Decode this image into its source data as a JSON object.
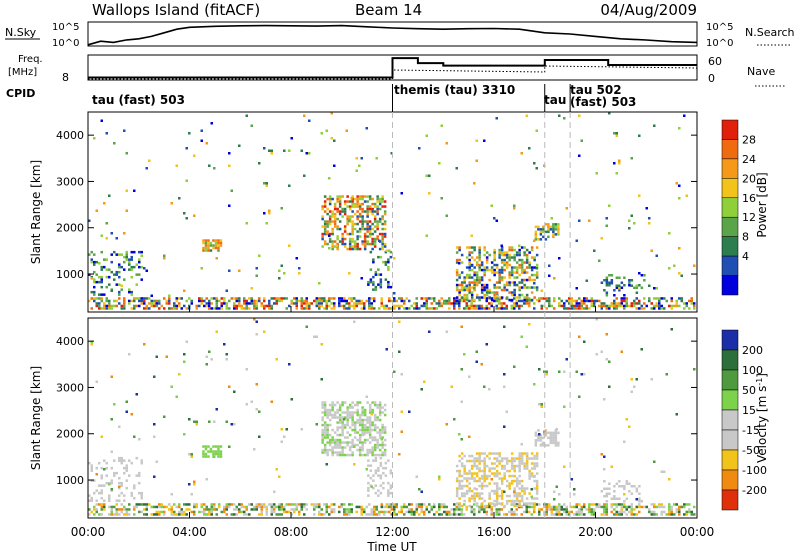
{
  "header": {
    "title_left": "Wallops Island (fitACF)",
    "title_center": "Beam 14",
    "title_right": "04/Aug/2009"
  },
  "noise_panel": {
    "left_label": "N.Sky",
    "right_label": "N.Search",
    "left_ticks": [
      "10^5",
      "10^0"
    ],
    "right_ticks": [
      "10^5",
      "10^0"
    ]
  },
  "freq_panel": {
    "left_label_top": "Freq.",
    "left_label_unit": "[MHz]",
    "left_tick": "8",
    "right_label": "Nave",
    "right_ticks": [
      "60",
      "0"
    ],
    "cpid_label": "CPID"
  },
  "cpid_modes": [
    {
      "label": "tau (fast) 503",
      "start_hour": 0
    },
    {
      "label": "themis (tau) 3310",
      "start_hour": 12.0
    },
    {
      "label": "tau",
      "start_hour": 18.0
    },
    {
      "label": "tau 502",
      "start_hour": 19.0
    },
    {
      "label": "(fast) 503",
      "start_hour": 19.0
    }
  ],
  "x_axis": {
    "label": "Time UT",
    "ticks": [
      "00:00",
      "04:00",
      "08:00",
      "12:00",
      "16:00",
      "20:00",
      "00:00"
    ],
    "tick_hours": [
      0,
      4,
      8,
      12,
      16,
      20,
      24
    ],
    "range_hours": [
      0,
      24
    ]
  },
  "colors": {
    "power": [
      "#0000dd",
      "#1f4fb3",
      "#2e7d4f",
      "#5aa54a",
      "#8fcf3a",
      "#f2c31b",
      "#f59a18",
      "#f06a10",
      "#e0200b"
    ],
    "velocity": [
      "#1a2ea8",
      "#2d6f3a",
      "#4f9a3f",
      "#7cd24a",
      "#c8c8c8",
      "#c8c8c8",
      "#f2c31b",
      "#f08a10",
      "#e0300b"
    ]
  },
  "chart_data": [
    {
      "type": "line",
      "name": "noise",
      "ylabel_left": "N.Sky",
      "ylabel_right": "N.Search",
      "x": [
        0,
        0.5,
        1.0,
        1.5,
        2.0,
        2.5,
        3.0,
        3.5,
        4.0,
        5,
        6,
        7,
        8,
        9,
        10,
        11,
        12,
        13,
        14,
        15,
        16,
        17,
        18,
        19,
        20,
        21,
        22,
        23,
        24
      ],
      "y_fraction": [
        0.05,
        0.2,
        0.15,
        0.25,
        0.3,
        0.4,
        0.55,
        0.7,
        0.78,
        0.82,
        0.84,
        0.85,
        0.84,
        0.83,
        0.85,
        0.8,
        0.75,
        0.72,
        0.7,
        0.72,
        0.73,
        0.7,
        0.55,
        0.5,
        0.4,
        0.3,
        0.25,
        0.18,
        0.15
      ]
    },
    {
      "type": "line",
      "name": "frequency",
      "ylabel": "Freq. [MHz]",
      "segments_hours": [
        [
          0,
          12.0,
          8.4
        ],
        [
          12.0,
          13.0,
          11.5
        ],
        [
          13.0,
          14.0,
          10.7
        ],
        [
          14.0,
          18.0,
          10.3
        ],
        [
          18.0,
          20.5,
          11.2
        ],
        [
          20.5,
          24,
          10.4
        ]
      ]
    },
    {
      "type": "heatmap",
      "name": "power",
      "ylabel": "Slant Range [km]",
      "xlabel": "",
      "colorbar_label": "Power [dB]",
      "colorbar_ticks": [
        "28",
        "24",
        "20",
        "16",
        "12",
        "8",
        "4"
      ],
      "y_ticks": [
        "4000",
        "3000",
        "2000",
        "1000"
      ],
      "y_tick_values": [
        4000,
        3000,
        2000,
        1000
      ],
      "ylim": [
        180,
        4500
      ],
      "xlim": [
        0,
        24
      ],
      "patches": [
        {
          "t0": 0.0,
          "t1": 24.0,
          "r0": 180,
          "r1": 500,
          "density": 0.55,
          "lvl": [
            0,
            8
          ]
        },
        {
          "t0": 0.0,
          "t1": 2.2,
          "r0": 500,
          "r1": 1500,
          "density": 0.22,
          "lvl": [
            0,
            4
          ]
        },
        {
          "t0": 4.5,
          "t1": 5.3,
          "r0": 1450,
          "r1": 1750,
          "density": 0.8,
          "lvl": [
            2,
            7
          ]
        },
        {
          "t0": 9.2,
          "t1": 11.8,
          "r0": 1500,
          "r1": 2700,
          "density": 0.55,
          "lvl": [
            1,
            8
          ]
        },
        {
          "t0": 11.0,
          "t1": 12.0,
          "r0": 600,
          "r1": 1500,
          "density": 0.25,
          "lvl": [
            0,
            4
          ]
        },
        {
          "t0": 14.5,
          "t1": 17.8,
          "r0": 400,
          "r1": 1600,
          "density": 0.45,
          "lvl": [
            0,
            7
          ]
        },
        {
          "t0": 17.6,
          "t1": 18.6,
          "r0": 1700,
          "r1": 2100,
          "density": 0.6,
          "lvl": [
            1,
            6
          ]
        },
        {
          "t0": 20.2,
          "t1": 22.0,
          "r0": 500,
          "r1": 1000,
          "density": 0.25,
          "lvl": [
            0,
            3
          ]
        },
        {
          "t0": 0.0,
          "t1": 24.0,
          "r0": 500,
          "r1": 4500,
          "density": 0.012,
          "lvl": [
            0,
            6
          ]
        }
      ]
    },
    {
      "type": "heatmap",
      "name": "velocity",
      "ylabel": "Slant Range [km]",
      "xlabel": "Time UT",
      "colorbar_label": "Velocity [m s",
      "colorbar_label_sup": "-1",
      "colorbar_label_end": "]",
      "colorbar_ticks": [
        "200",
        "100",
        "50",
        "15",
        "-15",
        "-50",
        "-100",
        "-200"
      ],
      "y_ticks": [
        "4000",
        "3000",
        "2000",
        "1000"
      ],
      "y_tick_values": [
        4000,
        3000,
        2000,
        1000
      ],
      "ylim": [
        180,
        4500
      ],
      "xlim": [
        0,
        24
      ],
      "patches": [
        {
          "t0": 0.0,
          "t1": 24.0,
          "r0": 180,
          "r1": 500,
          "density": 0.55,
          "lvl": [
            1,
            7
          ]
        },
        {
          "t0": 0.0,
          "t1": 2.2,
          "r0": 500,
          "r1": 1500,
          "density": 0.22,
          "lvl": [
            4,
            5
          ]
        },
        {
          "t0": 4.5,
          "t1": 5.3,
          "r0": 1450,
          "r1": 1750,
          "density": 0.8,
          "lvl": [
            3,
            3
          ]
        },
        {
          "t0": 9.2,
          "t1": 11.8,
          "r0": 1500,
          "r1": 2700,
          "density": 0.55,
          "lvl": [
            3,
            5
          ]
        },
        {
          "t0": 11.0,
          "t1": 12.0,
          "r0": 600,
          "r1": 1500,
          "density": 0.25,
          "lvl": [
            4,
            5
          ]
        },
        {
          "t0": 14.5,
          "t1": 17.8,
          "r0": 400,
          "r1": 1600,
          "density": 0.45,
          "lvl": [
            4,
            6
          ]
        },
        {
          "t0": 17.6,
          "t1": 18.6,
          "r0": 1700,
          "r1": 2100,
          "density": 0.6,
          "lvl": [
            4,
            5
          ]
        },
        {
          "t0": 20.2,
          "t1": 22.0,
          "r0": 500,
          "r1": 1000,
          "density": 0.25,
          "lvl": [
            4,
            5
          ]
        },
        {
          "t0": 0.0,
          "t1": 24.0,
          "r0": 500,
          "r1": 4500,
          "density": 0.012,
          "lvl": [
            0,
            7
          ]
        }
      ]
    }
  ]
}
